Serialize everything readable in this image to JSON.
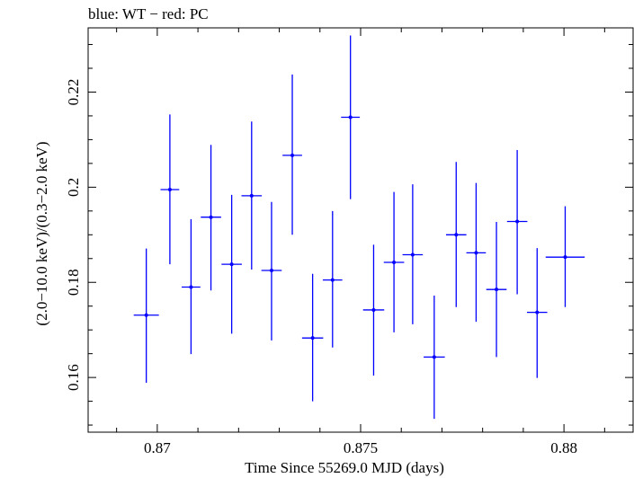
{
  "chart_data": {
    "type": "scatter",
    "title": "blue: WT − red: PC",
    "xlabel": "Time Since 55269.0 MJD (days)",
    "ylabel": "(2.0−10.0 keV)/(0.3−2.0 keV)",
    "xlim": [
      0.8683,
      0.8817
    ],
    "ylim": [
      0.1485,
      0.2335
    ],
    "x_ticks": [
      0.87,
      0.875,
      0.88
    ],
    "x_tick_labels": [
      "0.87",
      "0.875",
      "0.88"
    ],
    "y_ticks": [
      0.16,
      0.18,
      0.2,
      0.22
    ],
    "y_tick_labels": [
      "0.16",
      "0.18",
      "0.2",
      "0.22"
    ],
    "grid": false,
    "series": [
      {
        "color": "#0000ff",
        "points": [
          {
            "x": 0.86973,
            "y": 0.1731,
            "xerr": 0.00031,
            "yerr_low": 0.0142,
            "yerr_high": 0.014
          },
          {
            "x": 0.87031,
            "y": 0.1995,
            "xerr": 0.00023,
            "yerr_low": 0.0157,
            "yerr_high": 0.0158
          },
          {
            "x": 0.87083,
            "y": 0.179,
            "xerr": 0.00023,
            "yerr_low": 0.0141,
            "yerr_high": 0.0143
          },
          {
            "x": 0.87132,
            "y": 0.1937,
            "xerr": 0.00025,
            "yerr_low": 0.0154,
            "yerr_high": 0.0152
          },
          {
            "x": 0.87183,
            "y": 0.1838,
            "xerr": 0.00025,
            "yerr_low": 0.0146,
            "yerr_high": 0.0146
          },
          {
            "x": 0.87232,
            "y": 0.1982,
            "xerr": 0.00025,
            "yerr_low": 0.0155,
            "yerr_high": 0.0156
          },
          {
            "x": 0.87281,
            "y": 0.1825,
            "xerr": 0.00025,
            "yerr_low": 0.0147,
            "yerr_high": 0.0144
          },
          {
            "x": 0.87332,
            "y": 0.2067,
            "xerr": 0.00024,
            "yerr_low": 0.0167,
            "yerr_high": 0.017
          },
          {
            "x": 0.87382,
            "y": 0.1683,
            "xerr": 0.00026,
            "yerr_low": 0.0133,
            "yerr_high": 0.0135
          },
          {
            "x": 0.87431,
            "y": 0.1805,
            "xerr": 0.00024,
            "yerr_low": 0.0142,
            "yerr_high": 0.0145
          },
          {
            "x": 0.87475,
            "y": 0.2147,
            "xerr": 0.00023,
            "yerr_low": 0.0172,
            "yerr_high": 0.0172
          },
          {
            "x": 0.87532,
            "y": 0.1742,
            "xerr": 0.00026,
            "yerr_low": 0.0138,
            "yerr_high": 0.0137
          },
          {
            "x": 0.87582,
            "y": 0.1842,
            "xerr": 0.00025,
            "yerr_low": 0.0147,
            "yerr_high": 0.0148
          },
          {
            "x": 0.87628,
            "y": 0.1858,
            "xerr": 0.00025,
            "yerr_low": 0.0146,
            "yerr_high": 0.0148
          },
          {
            "x": 0.87681,
            "y": 0.1643,
            "xerr": 0.00026,
            "yerr_low": 0.013,
            "yerr_high": 0.0129
          },
          {
            "x": 0.87735,
            "y": 0.19,
            "xerr": 0.00025,
            "yerr_low": 0.0152,
            "yerr_high": 0.0153
          },
          {
            "x": 0.87784,
            "y": 0.1862,
            "xerr": 0.00024,
            "yerr_low": 0.0145,
            "yerr_high": 0.0147
          },
          {
            "x": 0.87834,
            "y": 0.1785,
            "xerr": 0.00025,
            "yerr_low": 0.0142,
            "yerr_high": 0.0142
          },
          {
            "x": 0.87885,
            "y": 0.1928,
            "xerr": 0.00025,
            "yerr_low": 0.0153,
            "yerr_high": 0.015
          },
          {
            "x": 0.87934,
            "y": 0.1737,
            "xerr": 0.00025,
            "yerr_low": 0.0138,
            "yerr_high": 0.0135
          },
          {
            "x": 0.88003,
            "y": 0.1853,
            "xerr": 0.00048,
            "yerr_low": 0.0105,
            "yerr_high": 0.0107
          }
        ]
      }
    ]
  }
}
